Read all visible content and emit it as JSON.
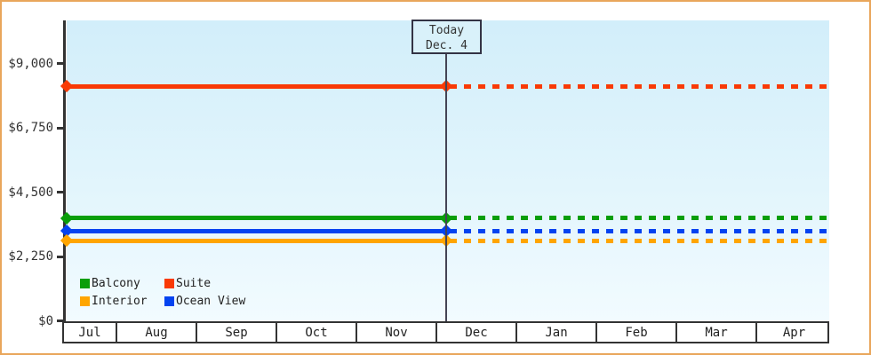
{
  "chart_data": {
    "type": "line",
    "title": "",
    "x_axis": {
      "categories": [
        "Jul",
        "Aug",
        "Sep",
        "Oct",
        "Nov",
        "Dec",
        "Jan",
        "Feb",
        "Mar",
        "Apr"
      ]
    },
    "y_axis": {
      "tick_labels": [
        "$0",
        "$2,250",
        "$4,500",
        "$6,750",
        "$9,000"
      ],
      "tick_values": [
        0,
        2250,
        4500,
        6750,
        9000
      ],
      "range": [
        0,
        10500
      ],
      "currency": "USD"
    },
    "today_marker": {
      "label_line1": "Today",
      "label_line2": "Dec. 4",
      "month": "Dec",
      "day": 4
    },
    "series": [
      {
        "name": "Suite",
        "color": "#f93a05",
        "value": 8200,
        "style": "solid-before-today-dashed-after"
      },
      {
        "name": "Balcony",
        "color": "#0a9e0a",
        "value": 3600,
        "style": "solid-before-today-dashed-after"
      },
      {
        "name": "Ocean View",
        "color": "#0343f0",
        "value": 3150,
        "style": "solid-before-today-dashed-after"
      },
      {
        "name": "Interior",
        "color": "#ffa500",
        "value": 2800,
        "style": "solid-before-today-dashed-after"
      }
    ],
    "legend": [
      {
        "label": "Balcony",
        "color": "#0a9e0a"
      },
      {
        "label": "Suite",
        "color": "#f93a05"
      },
      {
        "label": "Interior",
        "color": "#ffa500"
      },
      {
        "label": "Ocean View",
        "color": "#0343f0"
      }
    ],
    "legend_position": "bottom-left-inside-plot",
    "grid": false
  },
  "colors": {
    "outer_border": "#e9a65b",
    "plot_background_top": "#d2eefa",
    "plot_background_bottom": "#f2fbff",
    "axis": "#333333",
    "text": "#333333",
    "today_line": "#445555"
  }
}
